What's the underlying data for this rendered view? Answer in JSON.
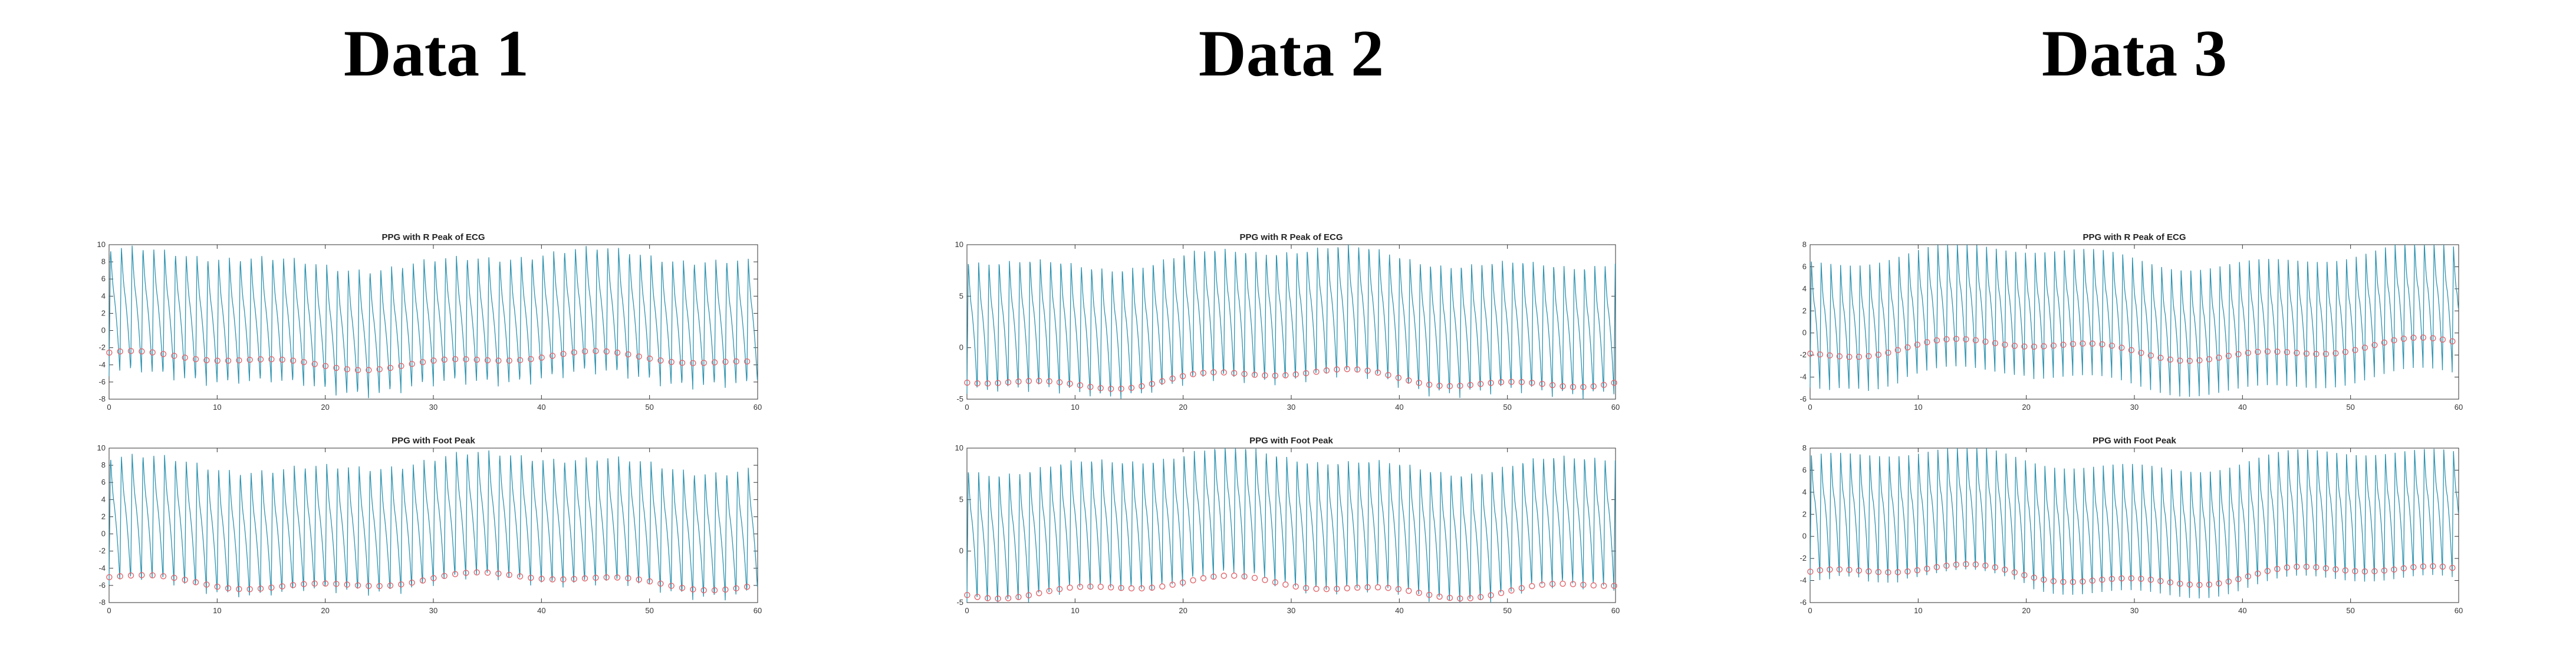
{
  "panels": [
    {
      "title": "Data 1"
    },
    {
      "title": "Data 2"
    },
    {
      "title": "Data 3"
    }
  ],
  "colors": {
    "ppg": "#2e93b0",
    "marker": "#e0676e",
    "axis": "#333333"
  },
  "chart_data": [
    {
      "type": "line",
      "panel": "Data 1",
      "title": "PPG with R Peak of ECG",
      "xlim": [
        0,
        60
      ],
      "ylim": [
        -8,
        10
      ],
      "xticks": [
        "0",
        "10",
        "20",
        "30",
        "40",
        "50",
        "60"
      ],
      "yticks": [
        "10",
        "8",
        "6",
        "4",
        "2",
        "0",
        "-2",
        "-4",
        "-6",
        "-8"
      ],
      "ytick_values": [
        10,
        8,
        6,
        4,
        2,
        0,
        -2,
        -4,
        -6,
        -8
      ],
      "beat_period_s": 1.0,
      "peak_max": 8.5,
      "trough_min": -6.5,
      "marker_level": -3.5,
      "markers": "red circles at ECG R-peak times"
    },
    {
      "type": "line",
      "panel": "Data 1",
      "title": "PPG with Foot Peak",
      "xlim": [
        0,
        60
      ],
      "ylim": [
        -8,
        10
      ],
      "xticks": [
        "0",
        "10",
        "20",
        "30",
        "40",
        "50",
        "60"
      ],
      "yticks": [
        "10",
        "8",
        "6",
        "4",
        "2",
        "0",
        "-2",
        "-4",
        "-6",
        "-8"
      ],
      "ytick_values": [
        10,
        8,
        6,
        4,
        2,
        0,
        -2,
        -4,
        -6,
        -8
      ],
      "beat_period_s": 1.0,
      "peak_max": 8.5,
      "trough_min": -6.5,
      "marker_level": -5.5,
      "markers": "red circles at PPG foot points"
    },
    {
      "type": "line",
      "panel": "Data 2",
      "title": "PPG with R Peak of ECG",
      "xlim": [
        0,
        60
      ],
      "ylim": [
        -5,
        10
      ],
      "xticks": [
        "0",
        "10",
        "20",
        "30",
        "40",
        "50",
        "60"
      ],
      "yticks": [
        "10",
        "5",
        "0",
        "-5"
      ],
      "ytick_values": [
        10,
        5,
        0,
        -5
      ],
      "beat_period_s": 0.95,
      "peak_max": 9.0,
      "trough_min": -4.0,
      "marker_level": -3.0,
      "markers": "red circles at ECG R-peak times"
    },
    {
      "type": "line",
      "panel": "Data 2",
      "title": "PPG with Foot Peak",
      "xlim": [
        0,
        60
      ],
      "ylim": [
        -5,
        10
      ],
      "xticks": [
        "0",
        "10",
        "20",
        "30",
        "40",
        "50",
        "60"
      ],
      "yticks": [
        "10",
        "5",
        "0",
        "-5"
      ],
      "ytick_values": [
        10,
        5,
        0,
        -5
      ],
      "beat_period_s": 0.95,
      "peak_max": 9.0,
      "trough_min": -4.0,
      "marker_level": -3.5,
      "markers": "red circles at PPG foot points"
    },
    {
      "type": "line",
      "panel": "Data 3",
      "title": "PPG with R Peak of ECG",
      "xlim": [
        0,
        60
      ],
      "ylim": [
        -6,
        8
      ],
      "xticks": [
        "0",
        "10",
        "20",
        "30",
        "40",
        "50",
        "60"
      ],
      "yticks": [
        "8",
        "6",
        "4",
        "2",
        "0",
        "-2",
        "-4",
        "-6"
      ],
      "ytick_values": [
        8,
        6,
        4,
        2,
        0,
        -2,
        -4,
        -6
      ],
      "beat_period_s": 0.9,
      "peak_max": 7.0,
      "trough_min": -4.5,
      "marker_level": -1.5,
      "markers": "red circles at ECG R-peak times"
    },
    {
      "type": "line",
      "panel": "Data 3",
      "title": "PPG with Foot Peak",
      "xlim": [
        0,
        60
      ],
      "ylim": [
        -6,
        8
      ],
      "xticks": [
        "0",
        "10",
        "20",
        "30",
        "40",
        "50",
        "60"
      ],
      "yticks": [
        "8",
        "6",
        "4",
        "2",
        "0",
        "-2",
        "-4",
        "-6"
      ],
      "ytick_values": [
        8,
        6,
        4,
        2,
        0,
        -2,
        -4,
        -6
      ],
      "beat_period_s": 0.9,
      "peak_max": 7.0,
      "trough_min": -4.5,
      "marker_level": -3.5,
      "markers": "red circles at PPG foot points"
    }
  ]
}
